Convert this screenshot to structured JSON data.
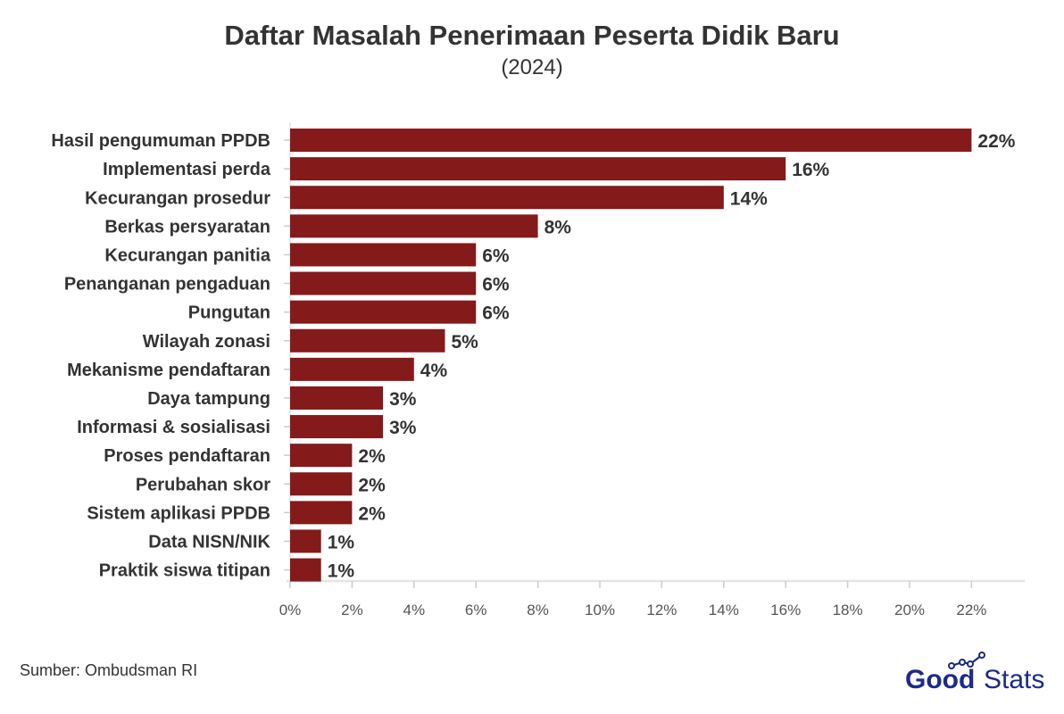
{
  "chart_data": {
    "type": "bar",
    "orientation": "horizontal",
    "title": "Daftar Masalah Penerimaan Peserta Didik Baru",
    "subtitle": "(2024)",
    "categories": [
      "Hasil pengumuman PPDB",
      "Implementasi perda",
      "Kecurangan prosedur",
      "Berkas persyaratan",
      "Kecurangan panitia",
      "Penanganan pengaduan",
      "Pungutan",
      "Wilayah zonasi",
      "Mekanisme pendaftaran",
      "Daya tampung",
      "Informasi & sosialisasi",
      "Proses pendaftaran",
      "Perubahan skor",
      "Sistem aplikasi PPDB",
      "Data NISN/NIK",
      "Praktik siswa titipan"
    ],
    "values": [
      22,
      16,
      14,
      8,
      6,
      6,
      6,
      5,
      4,
      3,
      3,
      2,
      2,
      2,
      1,
      1
    ],
    "value_labels": [
      "22%",
      "16%",
      "14%",
      "8%",
      "6%",
      "6%",
      "6%",
      "5%",
      "4%",
      "3%",
      "3%",
      "2%",
      "2%",
      "2%",
      "1%",
      "1%"
    ],
    "x_ticks": [
      "0%",
      "2%",
      "4%",
      "6%",
      "8%",
      "10%",
      "12%",
      "14%",
      "16%",
      "18%",
      "20%",
      "22%"
    ],
    "xlim": [
      0,
      23.7
    ],
    "xlabel": "",
    "ylabel": "",
    "grid": false,
    "bar_color": "#841a1a"
  },
  "source": "Sumber: Ombudsman RI",
  "logo": {
    "text_good": "Good",
    "text_stats": "Stats",
    "color": "#1b2a8a"
  }
}
